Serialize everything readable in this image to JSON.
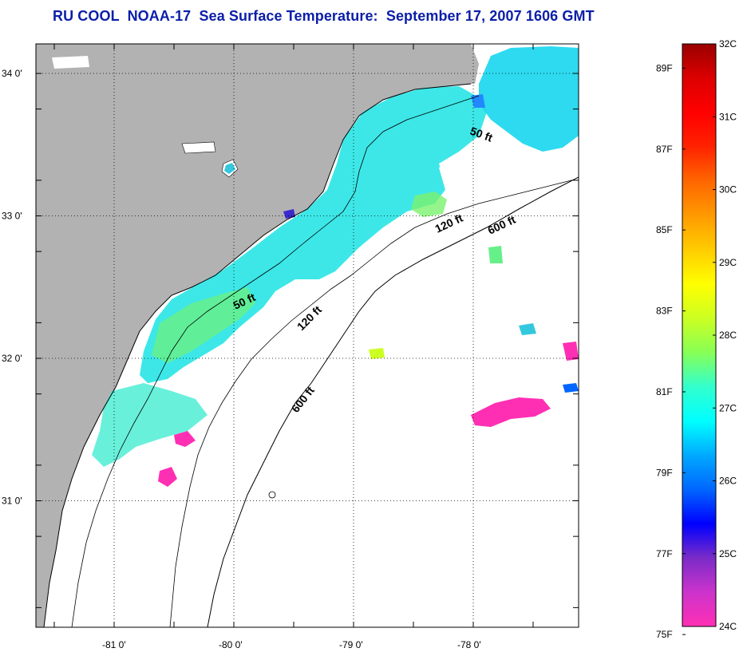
{
  "title": "RU COOL  NOAA-17  Sea Surface Temperature:  September 17, 2007 1606 GMT",
  "map": {
    "lat_ticks": [
      {
        "label": "34 0'",
        "value": 34.0
      },
      {
        "label": "33 0'",
        "value": 33.0
      },
      {
        "label": "32 0'",
        "value": 32.0
      },
      {
        "label": "31 0'",
        "value": 31.0
      }
    ],
    "lon_ticks": [
      {
        "label": "-81 0'",
        "value": -81.0
      },
      {
        "label": "-80 0'",
        "value": -80.0
      },
      {
        "label": "-79 0'",
        "value": -79.0
      },
      {
        "label": "-78 0'",
        "value": -78.0
      }
    ],
    "grid": "dotted",
    "contour_labels": [
      {
        "text": "50 ft",
        "depth_ft": 50
      },
      {
        "text": "120 ft",
        "depth_ft": 120
      },
      {
        "text": "600 ft",
        "depth_ft": 600
      },
      {
        "text": "50 ft",
        "depth_ft": 50
      },
      {
        "text": "120 ft",
        "depth_ft": 120
      },
      {
        "text": "600 ft",
        "depth_ft": 600
      }
    ],
    "land_color": "#b2b2b2",
    "ocean_no_data_color": "#ffffff"
  },
  "colorbar": {
    "celsius_labels": [
      "32C",
      "31C",
      "30C",
      "29C",
      "28C",
      "27C",
      "26C",
      "25C",
      "24C"
    ],
    "fahrenheit_labels": [
      "89F",
      "87F",
      "85F",
      "83F",
      "81F",
      "79F",
      "77F",
      "75F"
    ],
    "colors": [
      "#ff2fb4",
      "#cc33cc",
      "#7a2bc8",
      "#0000ff",
      "#0066ff",
      "#00aaff",
      "#00ffff",
      "#33ffcc",
      "#88ff55",
      "#ccff22",
      "#ffff00",
      "#ffcc00",
      "#ff9900",
      "#ff6600",
      "#ff2200",
      "#ff0000",
      "#dd0000",
      "#990000"
    ]
  }
}
